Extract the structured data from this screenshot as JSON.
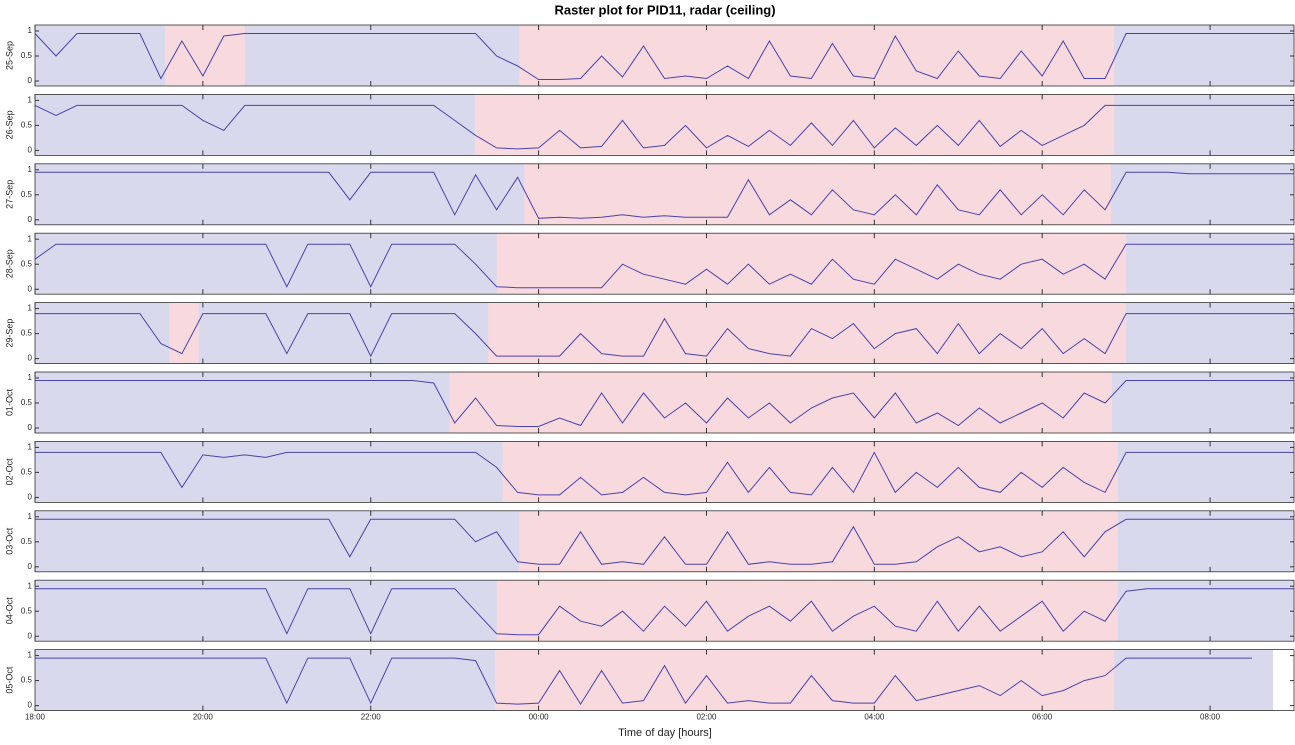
{
  "chart_data": {
    "type": "line",
    "title": "Raster plot for PID11, radar (ceiling)",
    "xlabel": "Time of day [hours]",
    "xlim": [
      18,
      33
    ],
    "ylim": [
      -0.1,
      1.12
    ],
    "xticks": [
      {
        "value": 18,
        "label": "18:00"
      },
      {
        "value": 20,
        "label": "20:00"
      },
      {
        "value": 22,
        "label": "22:00"
      },
      {
        "value": 24,
        "label": "00:00"
      },
      {
        "value": 26,
        "label": "02:00"
      },
      {
        "value": 28,
        "label": "04:00"
      },
      {
        "value": 30,
        "label": "06:00"
      },
      {
        "value": 32,
        "label": "08:00"
      }
    ],
    "yticks": [
      0,
      0.5,
      1
    ],
    "line_color": "#4a43aa",
    "awake_color": "#d9d9ee",
    "asleep_color": "#f8d9de",
    "x": [
      18,
      18.25,
      18.5,
      18.75,
      19,
      19.25,
      19.5,
      19.75,
      20,
      20.25,
      20.5,
      20.75,
      21,
      21.25,
      21.5,
      21.75,
      22,
      22.25,
      22.5,
      22.75,
      23,
      23.25,
      23.5,
      23.75,
      24,
      24.25,
      24.5,
      24.75,
      25,
      25.25,
      25.5,
      25.75,
      26,
      26.25,
      26.5,
      26.75,
      27,
      27.25,
      27.5,
      27.75,
      28,
      28.25,
      28.5,
      28.75,
      29,
      29.25,
      29.5,
      29.75,
      30,
      30.25,
      30.5,
      30.75,
      31,
      31.25,
      31.5,
      31.75,
      32,
      32.25,
      32.5,
      32.75,
      33
    ],
    "series": [
      {
        "name": "25-Sep",
        "recorded": [
          18,
          33
        ],
        "asleep": [
          [
            19.55,
            20.5
          ],
          [
            23.77,
            30.86
          ]
        ],
        "values": [
          0.95,
          0.5,
          0.95,
          0.95,
          0.95,
          0.95,
          0.05,
          0.8,
          0.1,
          0.9,
          0.95,
          0.95,
          0.95,
          0.95,
          0.95,
          0.95,
          0.95,
          0.95,
          0.95,
          0.95,
          0.95,
          0.95,
          0.5,
          0.3,
          0.03,
          0.03,
          0.05,
          0.5,
          0.08,
          0.7,
          0.05,
          0.1,
          0.05,
          0.3,
          0.05,
          0.8,
          0.1,
          0.05,
          0.75,
          0.1,
          0.05,
          0.9,
          0.2,
          0.05,
          0.6,
          0.1,
          0.05,
          0.6,
          0.1,
          0.8,
          0.05,
          0.05,
          0.95,
          0.95,
          0.95,
          0.95,
          0.95,
          0.95,
          0.95,
          0.95,
          0.95
        ]
      },
      {
        "name": "26-Sep",
        "recorded": [
          18,
          33
        ],
        "asleep": [
          [
            23.24,
            30.86
          ]
        ],
        "values": [
          0.9,
          0.7,
          0.9,
          0.9,
          0.9,
          0.9,
          0.9,
          0.9,
          0.6,
          0.4,
          0.9,
          0.9,
          0.9,
          0.9,
          0.9,
          0.9,
          0.9,
          0.9,
          0.9,
          0.9,
          0.6,
          0.3,
          0.05,
          0.03,
          0.05,
          0.4,
          0.05,
          0.08,
          0.6,
          0.05,
          0.1,
          0.5,
          0.05,
          0.3,
          0.08,
          0.4,
          0.1,
          0.55,
          0.1,
          0.6,
          0.05,
          0.45,
          0.1,
          0.5,
          0.1,
          0.6,
          0.08,
          0.4,
          0.1,
          0.3,
          0.5,
          0.9,
          0.9,
          0.9,
          0.9,
          0.9,
          0.9,
          0.9,
          0.9,
          0.9,
          0.9
        ]
      },
      {
        "name": "27-Sep",
        "recorded": [
          18,
          33
        ],
        "asleep": [
          [
            23.83,
            30.82
          ]
        ],
        "values": [
          0.95,
          0.95,
          0.95,
          0.95,
          0.95,
          0.95,
          0.95,
          0.95,
          0.95,
          0.95,
          0.95,
          0.95,
          0.95,
          0.95,
          0.95,
          0.4,
          0.95,
          0.95,
          0.95,
          0.95,
          0.1,
          0.9,
          0.2,
          0.85,
          0.03,
          0.05,
          0.03,
          0.05,
          0.1,
          0.05,
          0.08,
          0.05,
          0.05,
          0.05,
          0.8,
          0.1,
          0.4,
          0.1,
          0.6,
          0.2,
          0.1,
          0.5,
          0.1,
          0.7,
          0.2,
          0.1,
          0.6,
          0.1,
          0.5,
          0.1,
          0.6,
          0.2,
          0.95,
          0.95,
          0.95,
          0.92,
          0.92,
          0.92,
          0.92,
          0.92,
          0.92
        ]
      },
      {
        "name": "28-Sep",
        "recorded": [
          18,
          33
        ],
        "asleep": [
          [
            23.5,
            31
          ]
        ],
        "values": [
          0.6,
          0.9,
          0.9,
          0.9,
          0.9,
          0.9,
          0.9,
          0.9,
          0.9,
          0.9,
          0.9,
          0.9,
          0.05,
          0.9,
          0.9,
          0.9,
          0.05,
          0.9,
          0.9,
          0.9,
          0.9,
          0.5,
          0.05,
          0.03,
          0.03,
          0.03,
          0.03,
          0.03,
          0.5,
          0.3,
          0.2,
          0.1,
          0.4,
          0.1,
          0.5,
          0.1,
          0.3,
          0.1,
          0.6,
          0.2,
          0.1,
          0.6,
          0.4,
          0.2,
          0.5,
          0.3,
          0.2,
          0.5,
          0.6,
          0.3,
          0.5,
          0.2,
          0.9,
          0.9,
          0.9,
          0.9,
          0.9,
          0.9,
          0.9,
          0.9,
          0.9
        ]
      },
      {
        "name": "29-Sep",
        "recorded": [
          18,
          33
        ],
        "asleep": [
          [
            19.6,
            19.95
          ],
          [
            23.4,
            31
          ]
        ],
        "values": [
          0.9,
          0.9,
          0.9,
          0.9,
          0.9,
          0.9,
          0.3,
          0.1,
          0.9,
          0.9,
          0.9,
          0.9,
          0.1,
          0.9,
          0.9,
          0.9,
          0.05,
          0.9,
          0.9,
          0.9,
          0.9,
          0.5,
          0.05,
          0.05,
          0.05,
          0.05,
          0.5,
          0.1,
          0.05,
          0.05,
          0.8,
          0.1,
          0.05,
          0.6,
          0.2,
          0.1,
          0.05,
          0.6,
          0.4,
          0.7,
          0.2,
          0.5,
          0.6,
          0.1,
          0.7,
          0.1,
          0.5,
          0.2,
          0.6,
          0.1,
          0.4,
          0.1,
          0.9,
          0.9,
          0.9,
          0.9,
          0.9,
          0.9,
          0.9,
          0.9,
          0.9
        ]
      },
      {
        "name": "01-Oct",
        "recorded": [
          18,
          33
        ],
        "asleep": [
          [
            22.94,
            30.83
          ]
        ],
        "values": [
          0.95,
          0.95,
          0.95,
          0.95,
          0.95,
          0.95,
          0.95,
          0.95,
          0.95,
          0.95,
          0.95,
          0.95,
          0.95,
          0.95,
          0.95,
          0.95,
          0.95,
          0.95,
          0.95,
          0.9,
          0.1,
          0.6,
          0.05,
          0.03,
          0.03,
          0.2,
          0.05,
          0.7,
          0.1,
          0.7,
          0.2,
          0.5,
          0.1,
          0.6,
          0.2,
          0.5,
          0.1,
          0.4,
          0.6,
          0.7,
          0.2,
          0.7,
          0.1,
          0.3,
          0.05,
          0.4,
          0.1,
          0.3,
          0.5,
          0.2,
          0.7,
          0.5,
          0.95,
          0.95,
          0.95,
          0.95,
          0.95,
          0.95,
          0.95,
          0.95,
          0.95
        ]
      },
      {
        "name": "02-Oct",
        "recorded": [
          18,
          33
        ],
        "asleep": [
          [
            23.57,
            30.9
          ]
        ],
        "values": [
          0.9,
          0.9,
          0.9,
          0.9,
          0.9,
          0.9,
          0.9,
          0.2,
          0.85,
          0.8,
          0.85,
          0.8,
          0.9,
          0.9,
          0.9,
          0.9,
          0.9,
          0.9,
          0.9,
          0.9,
          0.9,
          0.9,
          0.6,
          0.1,
          0.05,
          0.05,
          0.4,
          0.05,
          0.1,
          0.4,
          0.1,
          0.05,
          0.1,
          0.7,
          0.1,
          0.6,
          0.1,
          0.05,
          0.6,
          0.1,
          0.9,
          0.1,
          0.5,
          0.2,
          0.6,
          0.2,
          0.1,
          0.5,
          0.2,
          0.6,
          0.3,
          0.1,
          0.9,
          0.9,
          0.9,
          0.9,
          0.9,
          0.9,
          0.9,
          0.9,
          0.9
        ]
      },
      {
        "name": "03-Oct",
        "recorded": [
          18,
          33
        ],
        "asleep": [
          [
            23.77,
            30.9
          ]
        ],
        "values": [
          0.95,
          0.95,
          0.95,
          0.95,
          0.95,
          0.95,
          0.95,
          0.95,
          0.95,
          0.95,
          0.95,
          0.95,
          0.95,
          0.95,
          0.95,
          0.2,
          0.95,
          0.95,
          0.95,
          0.95,
          0.95,
          0.5,
          0.7,
          0.1,
          0.05,
          0.05,
          0.7,
          0.05,
          0.1,
          0.05,
          0.6,
          0.05,
          0.05,
          0.7,
          0.05,
          0.1,
          0.05,
          0.05,
          0.1,
          0.8,
          0.05,
          0.05,
          0.1,
          0.4,
          0.6,
          0.3,
          0.4,
          0.2,
          0.3,
          0.7,
          0.2,
          0.7,
          0.95,
          0.95,
          0.95,
          0.95,
          0.95,
          0.95,
          0.95,
          0.95,
          0.95
        ]
      },
      {
        "name": "04-Oct",
        "recorded": [
          18,
          33
        ],
        "asleep": [
          [
            23.5,
            30.9
          ]
        ],
        "values": [
          0.95,
          0.95,
          0.95,
          0.95,
          0.95,
          0.95,
          0.95,
          0.95,
          0.95,
          0.95,
          0.95,
          0.95,
          0.05,
          0.95,
          0.95,
          0.95,
          0.05,
          0.95,
          0.95,
          0.95,
          0.95,
          0.5,
          0.05,
          0.03,
          0.03,
          0.6,
          0.3,
          0.2,
          0.5,
          0.1,
          0.6,
          0.2,
          0.7,
          0.1,
          0.4,
          0.6,
          0.3,
          0.7,
          0.1,
          0.4,
          0.6,
          0.2,
          0.1,
          0.7,
          0.1,
          0.6,
          0.1,
          0.4,
          0.7,
          0.1,
          0.5,
          0.3,
          0.9,
          0.95,
          0.95,
          0.95,
          0.95,
          0.95,
          0.95,
          0.95,
          0.95
        ]
      },
      {
        "name": "05-Oct",
        "recorded": [
          18,
          32.75
        ],
        "asleep": [
          [
            23.48,
            30.86
          ]
        ],
        "values": [
          0.95,
          0.95,
          0.95,
          0.95,
          0.95,
          0.95,
          0.95,
          0.95,
          0.95,
          0.95,
          0.95,
          0.95,
          0.05,
          0.95,
          0.95,
          0.95,
          0.05,
          0.95,
          0.95,
          0.95,
          0.95,
          0.9,
          0.05,
          0.03,
          0.05,
          0.7,
          0.03,
          0.7,
          0.05,
          0.1,
          0.8,
          0.05,
          0.6,
          0.05,
          0.1,
          0.05,
          0.05,
          0.6,
          0.1,
          0.05,
          0.05,
          0.6,
          0.1,
          0.2,
          0.3,
          0.4,
          0.2,
          0.5,
          0.2,
          0.3,
          0.5,
          0.6,
          0.95,
          0.95,
          0.95,
          0.95,
          0.95,
          0.95,
          0.95,
          null,
          null
        ]
      }
    ]
  }
}
